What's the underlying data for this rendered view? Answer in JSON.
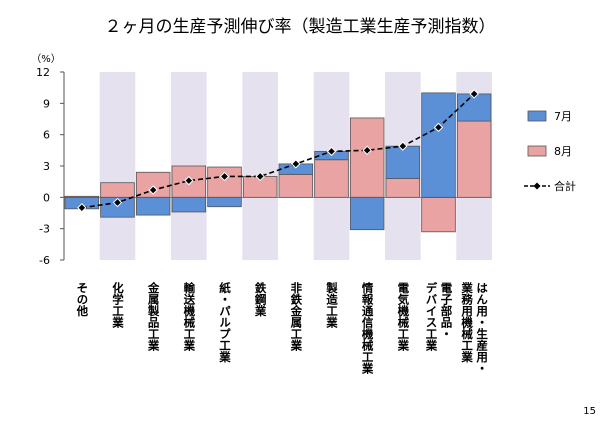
{
  "chart_data": {
    "type": "bar",
    "stacked": true,
    "title": "２ヶ月の生産予測伸び率（製造工業生産予測指数）",
    "y_unit_label": "（%）",
    "categories": [
      "その他",
      "化学工業",
      "金属製品工業",
      "輸送機械工業",
      "紙・パルプ工業",
      "鉄鋼業",
      "非鉄金属工業",
      "製造工業",
      "情報通信機械工業",
      "電気機械工業",
      "電子部品・\nデバイス工業",
      "はん用・生産用・\n業務用機械工業"
    ],
    "series": [
      {
        "name": "7月",
        "color": "#5b8fd6",
        "values": [
          -1.1,
          -1.9,
          -1.7,
          -1.4,
          -0.9,
          0.0,
          1.0,
          0.8,
          -3.1,
          3.1,
          10.0,
          2.6
        ]
      },
      {
        "name": "8月",
        "color": "#e9a3a3",
        "values": [
          0.1,
          1.4,
          2.4,
          3.0,
          2.9,
          2.0,
          2.2,
          3.6,
          7.6,
          1.8,
          -3.3,
          7.3
        ]
      },
      {
        "name": "合計",
        "type": "line",
        "color": "#000000",
        "values": [
          -1.0,
          -0.5,
          0.7,
          1.6,
          2.0,
          2.0,
          3.2,
          4.4,
          4.5,
          4.9,
          6.7,
          9.9
        ]
      }
    ],
    "ylim": [
      -6,
      12
    ],
    "yticks": [
      -6,
      -3,
      0,
      3,
      6,
      9,
      12
    ],
    "band_color": "#e6e1ef"
  },
  "page_number": "15"
}
